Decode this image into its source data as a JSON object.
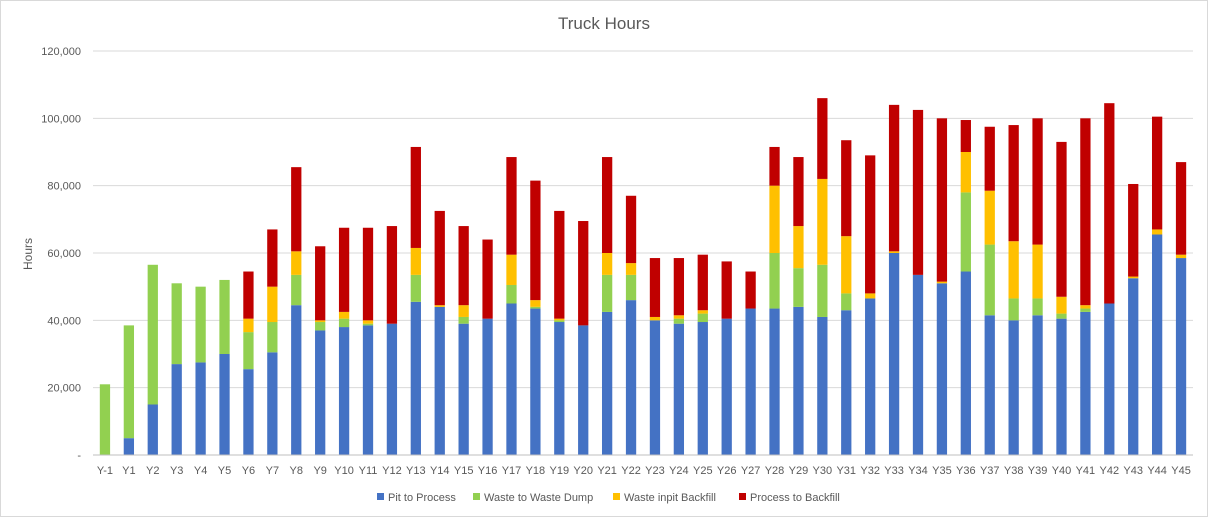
{
  "chart_data": {
    "type": "bar",
    "stacked": true,
    "title": "Truck Hours",
    "xlabel": "",
    "ylabel": "Hours",
    "ylim": [
      0,
      120000
    ],
    "y_ticks": [
      0,
      20000,
      40000,
      60000,
      80000,
      100000,
      120000
    ],
    "y_tick_labels": [
      "-",
      "20,000",
      "40,000",
      "60,000",
      "80,000",
      "100,000",
      "120,000"
    ],
    "grid": true,
    "legend_position": "bottom",
    "categories": [
      "Y-1",
      "Y1",
      "Y2",
      "Y3",
      "Y4",
      "Y5",
      "Y6",
      "Y7",
      "Y8",
      "Y9",
      "Y10",
      "Y11",
      "Y12",
      "Y13",
      "Y14",
      "Y15",
      "Y16",
      "Y17",
      "Y18",
      "Y19",
      "Y20",
      "Y21",
      "Y22",
      "Y23",
      "Y24",
      "Y25",
      "Y26",
      "Y27",
      "Y28",
      "Y29",
      "Y30",
      "Y31",
      "Y32",
      "Y33",
      "Y34",
      "Y35",
      "Y36",
      "Y37",
      "Y38",
      "Y39",
      "Y40",
      "Y41",
      "Y42",
      "Y43",
      "Y44",
      "Y45"
    ],
    "series": [
      {
        "name": "Pit to Process",
        "color": "#4472C4",
        "values": [
          0,
          5000,
          15000,
          27000,
          27500,
          30000,
          25500,
          30500,
          44500,
          37000,
          38000,
          38500,
          39000,
          45500,
          44000,
          39000,
          40500,
          45000,
          43500,
          39500,
          38500,
          42500,
          46000,
          40000,
          39000,
          39500,
          40500,
          43500,
          43500,
          44000,
          41000,
          43000,
          46500,
          60000,
          53500,
          51000,
          54500,
          41500,
          40000,
          41500,
          40500,
          42500,
          45000,
          52500,
          65500,
          58500
        ]
      },
      {
        "name": "Waste to Waste Dump",
        "color": "#92D050",
        "values": [
          21000,
          33500,
          41500,
          24000,
          22500,
          22000,
          11000,
          9000,
          9000,
          2500,
          2500,
          500,
          0,
          8000,
          0,
          2000,
          0,
          5500,
          500,
          500,
          0,
          11000,
          7500,
          0,
          1500,
          2500,
          0,
          0,
          16500,
          11500,
          15500,
          5000,
          0,
          0,
          0,
          0,
          23500,
          21000,
          6500,
          5000,
          1500,
          1000,
          0,
          0,
          0,
          0
        ]
      },
      {
        "name": "Waste inpit Backfill",
        "color": "#FFC000",
        "values": [
          0,
          0,
          0,
          0,
          0,
          0,
          4000,
          10500,
          7000,
          500,
          2000,
          1000,
          0,
          8000,
          500,
          3500,
          0,
          9000,
          2000,
          500,
          0,
          6500,
          3500,
          1000,
          1000,
          1000,
          0,
          0,
          20000,
          12500,
          25500,
          17000,
          1500,
          500,
          0,
          500,
          12000,
          16000,
          17000,
          16000,
          5000,
          1000,
          0,
          500,
          1500,
          1000
        ]
      },
      {
        "name": "Process to Backfill",
        "color": "#C00000",
        "values": [
          0,
          0,
          0,
          0,
          0,
          0,
          14000,
          17000,
          25000,
          22000,
          25000,
          27500,
          29000,
          30000,
          28000,
          23500,
          23500,
          29000,
          35500,
          32000,
          31000,
          28500,
          20000,
          17500,
          17000,
          16500,
          17000,
          11000,
          11500,
          20500,
          24000,
          28500,
          41000,
          43500,
          49000,
          48500,
          9500,
          19000,
          34500,
          37500,
          46000,
          55500,
          59500,
          27500,
          33500,
          27500
        ]
      }
    ]
  }
}
